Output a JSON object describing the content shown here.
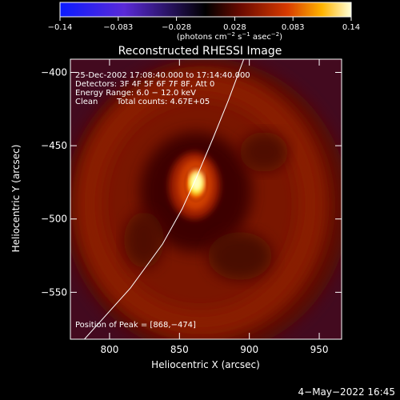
{
  "colorbar": {
    "ticks": [
      "−0.14",
      "−0.083",
      "−0.028",
      "0.028",
      "0.083",
      "0.14"
    ],
    "units_prefix": "(photons cm",
    "units_sup1": "−2",
    "units_mid": " s",
    "units_sup2": "−1",
    "units_mid2": " asec",
    "units_sup3": "−2",
    "units_suffix": ")"
  },
  "chart_data": {
    "type": "heatmap",
    "title": "Reconstructed RHESSI Image",
    "xlabel": "Heliocentric X (arcsec)",
    "ylabel": "Heliocentric Y (arcsec)",
    "xlim": [
      772,
      966
    ],
    "ylim": [
      -582,
      -391
    ],
    "x_ticks": [
      800,
      850,
      900,
      950
    ],
    "y_ticks": [
      -400,
      -450,
      -500,
      -550
    ],
    "x_tick_labels": [
      "800",
      "850",
      "900",
      "950"
    ],
    "y_tick_labels": [
      "−400",
      "−450",
      "−500",
      "−550"
    ],
    "colorbar_range": [
      -0.14,
      0.14
    ],
    "peak": [
      868,
      -474
    ],
    "limb_points": [
      [
        782,
        -582
      ],
      [
        815,
        -547
      ],
      [
        838,
        -517
      ],
      [
        852,
        -493
      ],
      [
        862,
        -472
      ],
      [
        874,
        -445
      ],
      [
        885,
        -419
      ],
      [
        896,
        -391
      ]
    ],
    "annotations": [
      "25-Dec-2002 17:08:40.000 to 17:14:40.000",
      "Detectors: 3F 4F 5F 6F 7F 8F, Att 0",
      "Energy Range: 6.0 − 12.0 keV",
      "Clean",
      "Total counts: 4.67E+05",
      "Position of Peak = [868,−474]"
    ],
    "footer": "4−May−2022 16:45"
  }
}
